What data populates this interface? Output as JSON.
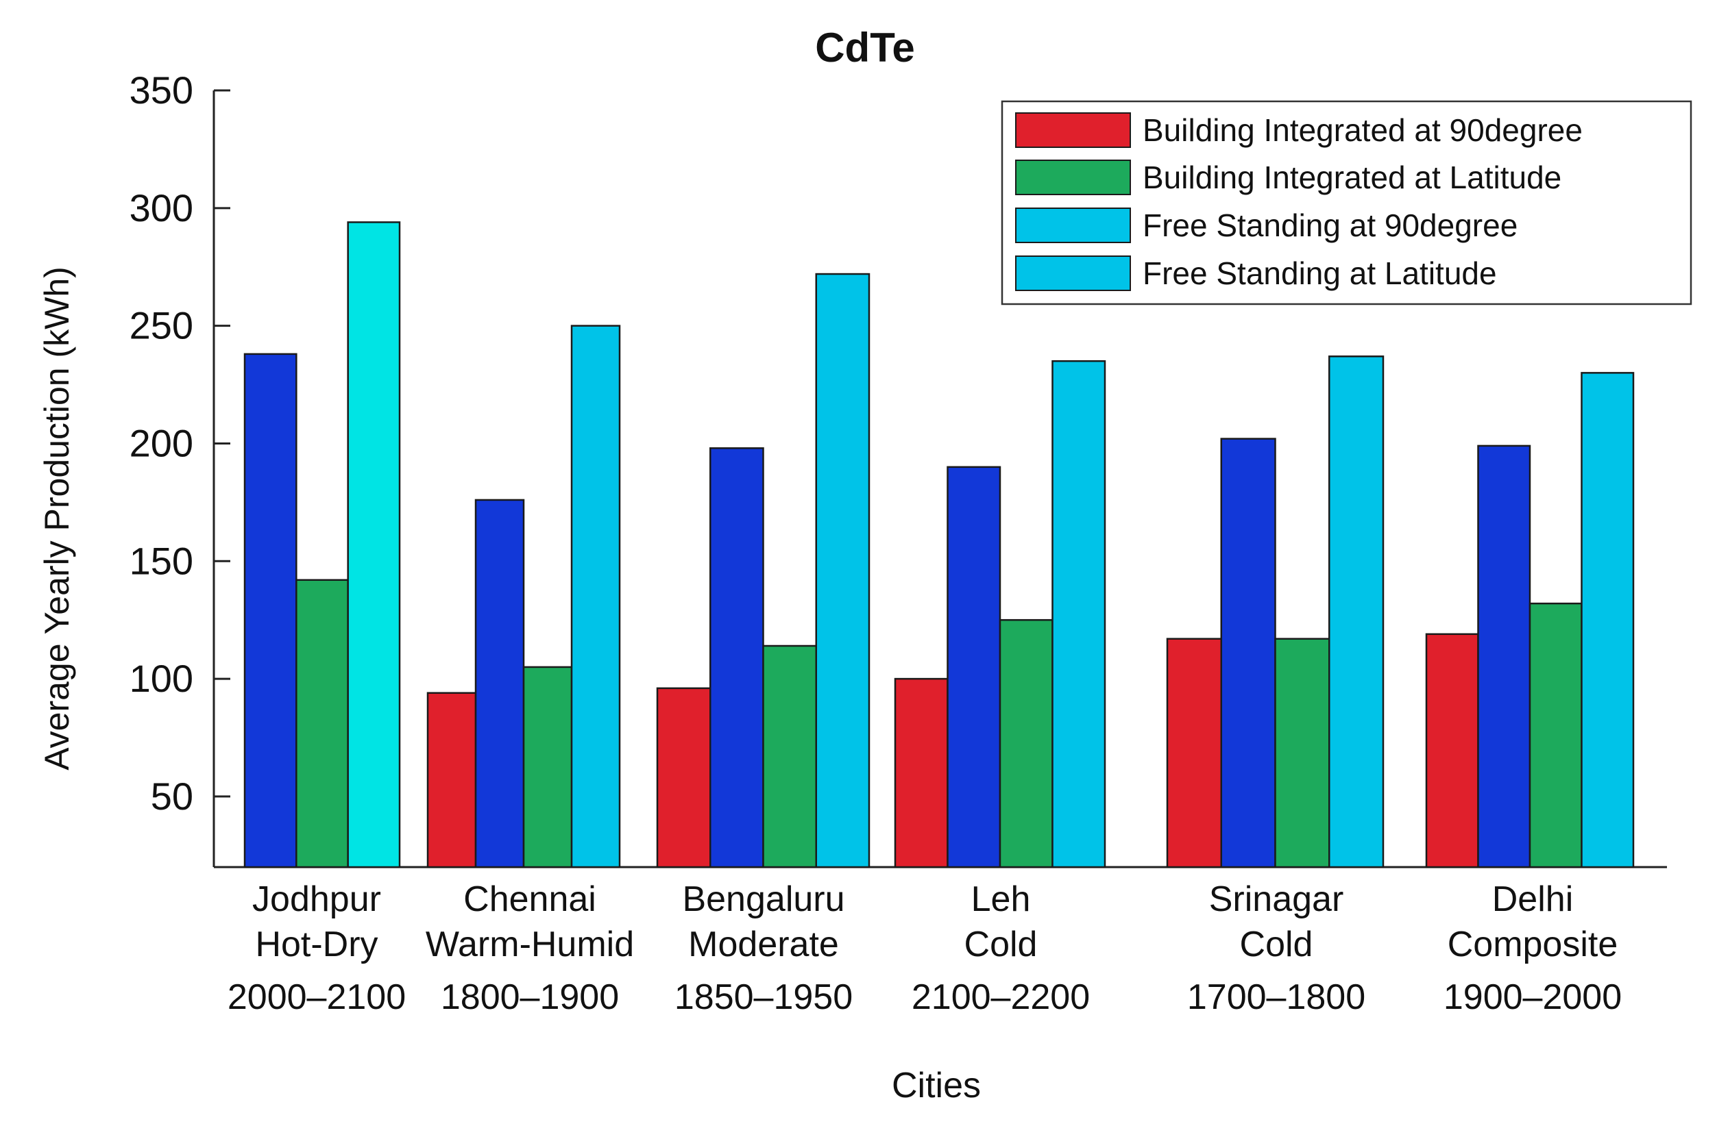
{
  "chart_data": {
    "type": "bar",
    "title": "CdTe",
    "xlabel": "Cities",
    "ylabel": "Average Yearly Production (kWh)",
    "ylim": [
      20,
      350
    ],
    "yticks": [
      50,
      100,
      150,
      200,
      250,
      300,
      350
    ],
    "grid": false,
    "legend_position": "top-right",
    "categories": [
      {
        "city": "Jodhpur",
        "climate": "Hot-Dry",
        "range": "2000–2100"
      },
      {
        "city": "Chennai",
        "climate": "Warm-Humid",
        "range": "1800–1900"
      },
      {
        "city": "Bengaluru",
        "climate": "Moderate",
        "range": "1850–1950"
      },
      {
        "city": "Leh",
        "climate": "Cold",
        "range": "2100–2200"
      },
      {
        "city": "Srinagar",
        "climate": "Cold",
        "range": "1700–1800"
      },
      {
        "city": "Delhi",
        "climate": "Composite",
        "range": "1900–2000"
      }
    ],
    "legend": [
      {
        "label": "Building Integrated at 90degree",
        "color": "#e0202c"
      },
      {
        "label": "Building Integrated at Latitude",
        "color": "#1daa5c"
      },
      {
        "label": "Free Standing at 90degree",
        "color": "#00c3e8"
      },
      {
        "label": "Free Standing at Latitude",
        "color": "#00c3e8"
      }
    ],
    "bar_colors": {
      "red": "#e0202c",
      "blue": "#1238d8",
      "green": "#1daa5c",
      "cyan": "#00c3e8",
      "cyan_bright": "#00e4e4"
    },
    "groups": [
      {
        "bars": [
          {
            "value": 238,
            "color": "blue"
          },
          {
            "value": 142,
            "color": "green"
          },
          {
            "value": 294,
            "color": "cyan_bright"
          }
        ]
      },
      {
        "bars": [
          {
            "value": 94,
            "color": "red"
          },
          {
            "value": 176,
            "color": "blue"
          },
          {
            "value": 105,
            "color": "green"
          },
          {
            "value": 250,
            "color": "cyan"
          }
        ]
      },
      {
        "bars": [
          {
            "value": 96,
            "color": "red"
          },
          {
            "value": 198,
            "color": "blue"
          },
          {
            "value": 114,
            "color": "green"
          },
          {
            "value": 272,
            "color": "cyan"
          }
        ]
      },
      {
        "bars": [
          {
            "value": 100,
            "color": "red"
          },
          {
            "value": 190,
            "color": "blue"
          },
          {
            "value": 125,
            "color": "green"
          },
          {
            "value": 235,
            "color": "cyan"
          }
        ]
      },
      {
        "bars": [
          {
            "value": 117,
            "color": "red"
          },
          {
            "value": 202,
            "color": "blue"
          },
          {
            "value": 117,
            "color": "green"
          },
          {
            "value": 237,
            "color": "cyan"
          }
        ]
      },
      {
        "bars": [
          {
            "value": 119,
            "color": "red"
          },
          {
            "value": 199,
            "color": "blue"
          },
          {
            "value": 132,
            "color": "green"
          },
          {
            "value": 230,
            "color": "cyan"
          }
        ]
      }
    ]
  }
}
